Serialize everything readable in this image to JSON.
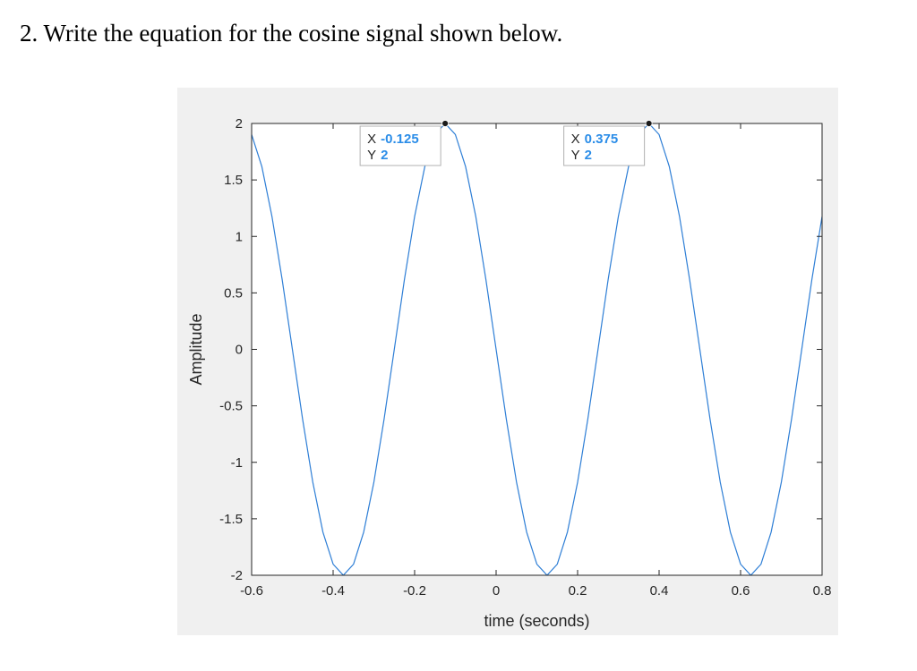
{
  "question": {
    "number": "2.",
    "text": "Write the equation for the cosine signal shown below."
  },
  "chart_data": {
    "type": "line",
    "title": "",
    "xlabel": "time (seconds)",
    "ylabel": "Amplitude",
    "xlim": [
      -0.6,
      0.8
    ],
    "ylim": [
      -2,
      2
    ],
    "xticks": [
      -0.6,
      -0.4,
      -0.2,
      0,
      0.2,
      0.4,
      0.6,
      0.8
    ],
    "xtick_labels": [
      "-0.6",
      "-0.4",
      "-0.2",
      "0",
      "0.2",
      "0.4",
      "0.6",
      "0.8"
    ],
    "yticks": [
      2,
      1.5,
      1,
      0.5,
      0,
      -0.5,
      -1,
      -1.5,
      -2
    ],
    "ytick_labels": [
      "2",
      "1.5",
      "1",
      "0.5",
      "0",
      "-0.5",
      "-1",
      "-1.5",
      "-2"
    ],
    "grid": false,
    "series": [
      {
        "color": "#2f7fd6",
        "x": [
          -0.6,
          -0.575,
          -0.55,
          -0.525,
          -0.5,
          -0.475,
          -0.45,
          -0.425,
          -0.4,
          -0.375,
          -0.35,
          -0.325,
          -0.3,
          -0.275,
          -0.25,
          -0.225,
          -0.2,
          -0.175,
          -0.15,
          -0.125,
          -0.1,
          -0.075,
          -0.05,
          -0.025,
          0,
          0.025,
          0.05,
          0.075,
          0.1,
          0.125,
          0.15,
          0.175,
          0.2,
          0.225,
          0.25,
          0.275,
          0.3,
          0.325,
          0.35,
          0.375,
          0.4,
          0.425,
          0.45,
          0.475,
          0.5,
          0.525,
          0.55,
          0.575,
          0.6,
          0.625,
          0.65,
          0.675,
          0.7,
          0.725,
          0.75,
          0.775,
          0.8
        ],
        "y": [
          1.902,
          1.618,
          1.176,
          0.618,
          0,
          -0.618,
          -1.176,
          -1.618,
          -1.902,
          -2,
          -1.902,
          -1.618,
          -1.176,
          -0.618,
          0,
          0.618,
          1.176,
          1.618,
          1.902,
          2,
          1.902,
          1.618,
          1.176,
          0.618,
          0,
          -0.618,
          -1.176,
          -1.618,
          -1.902,
          -2,
          -1.902,
          -1.618,
          -1.176,
          -0.618,
          0,
          0.618,
          1.176,
          1.618,
          1.902,
          2,
          1.902,
          1.618,
          1.176,
          0.618,
          0,
          -0.618,
          -1.176,
          -1.618,
          -1.902,
          -2,
          -1.902,
          -1.618,
          -1.176,
          -0.618,
          0,
          0.618,
          1.176
        ]
      }
    ],
    "datatips": [
      {
        "x": -0.125,
        "y": 2,
        "x_label": "X",
        "y_label": "Y",
        "x_value": "-0.125",
        "y_value": "2"
      },
      {
        "x": 0.375,
        "y": 2,
        "x_label": "X",
        "y_label": "Y",
        "x_value": "0.375",
        "y_value": "2"
      }
    ],
    "colors": {
      "line": "#2f7fd6",
      "figure_bg": "#f0f0f0",
      "axes_bg": "#ffffff",
      "datatip_value": "#2b8de8"
    }
  }
}
